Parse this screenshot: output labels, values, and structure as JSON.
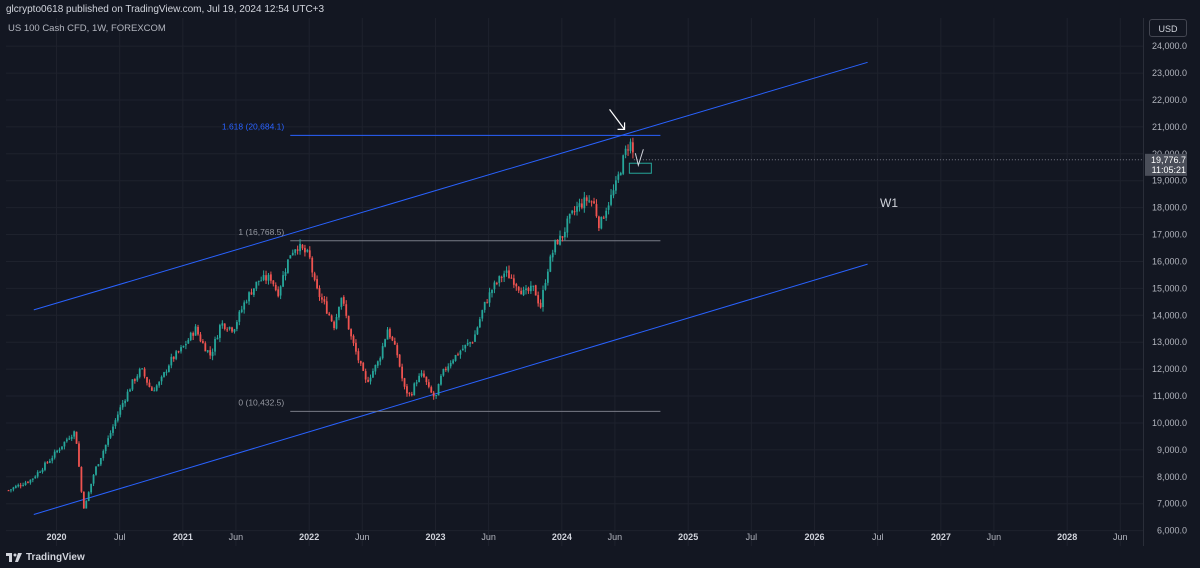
{
  "header": {
    "published": "glcrypto0618 published on TradingView.com, Jul 19, 2024 12:54 UTC+3",
    "symbol": "US 100 Cash CFD, 1W, FOREXCOM",
    "currency_button": "USD"
  },
  "footer": {
    "brand": "TradingView"
  },
  "chart_data": {
    "type": "candlestick",
    "y_ticks": [
      "6,000.0",
      "7,000.0",
      "8,000.0",
      "9,000.0",
      "10,000.0",
      "11,000.0",
      "12,000.0",
      "13,000.0",
      "14,000.0",
      "15,000.0",
      "16,000.0",
      "17,000.0",
      "18,000.0",
      "19,000.0",
      "20,000.0",
      "21,000.0",
      "22,000.0",
      "23,000.0",
      "24,000.0"
    ],
    "y_tick_values": [
      6000,
      7000,
      8000,
      9000,
      10000,
      11000,
      12000,
      13000,
      14000,
      15000,
      16000,
      17000,
      18000,
      19000,
      20000,
      21000,
      22000,
      23000,
      24000
    ],
    "ylim": [
      5800,
      24600
    ],
    "x_ticks": [
      {
        "label": "2020",
        "t": 2020.0,
        "bold": true
      },
      {
        "label": "Jul",
        "t": 2020.5
      },
      {
        "label": "2021",
        "t": 2021.0,
        "bold": true
      },
      {
        "label": "Jun",
        "t": 2021.42
      },
      {
        "label": "2022",
        "t": 2022.0,
        "bold": true
      },
      {
        "label": "Jun",
        "t": 2022.42
      },
      {
        "label": "2023",
        "t": 2023.0,
        "bold": true
      },
      {
        "label": "Jun",
        "t": 2023.42
      },
      {
        "label": "2024",
        "t": 2024.0,
        "bold": true
      },
      {
        "label": "Jun",
        "t": 2024.42
      },
      {
        "label": "2025",
        "t": 2025.0,
        "bold": true
      },
      {
        "label": "Jul",
        "t": 2025.5
      },
      {
        "label": "2026",
        "t": 2026.0,
        "bold": true
      },
      {
        "label": "Jul",
        "t": 2026.5
      },
      {
        "label": "2027",
        "t": 2027.0,
        "bold": true
      },
      {
        "label": "Jun",
        "t": 2027.42
      },
      {
        "label": "2028",
        "t": 2028.0,
        "bold": true
      },
      {
        "label": "Jun",
        "t": 2028.42
      }
    ],
    "xlim": [
      2019.6,
      2028.6
    ],
    "price_path": [
      [
        2019.62,
        7500
      ],
      [
        2019.8,
        7900
      ],
      [
        2019.95,
        8650
      ],
      [
        2020.1,
        9500
      ],
      [
        2020.15,
        9700
      ],
      [
        2020.2,
        7300
      ],
      [
        2020.22,
        6800
      ],
      [
        2020.3,
        8200
      ],
      [
        2020.4,
        9300
      ],
      [
        2020.5,
        10500
      ],
      [
        2020.6,
        11500
      ],
      [
        2020.67,
        12000
      ],
      [
        2020.75,
        11200
      ],
      [
        2020.82,
        11500
      ],
      [
        2020.9,
        12300
      ],
      [
        2021.0,
        12800
      ],
      [
        2021.1,
        13500
      ],
      [
        2021.15,
        13000
      ],
      [
        2021.22,
        12500
      ],
      [
        2021.3,
        13700
      ],
      [
        2021.4,
        13500
      ],
      [
        2021.5,
        14600
      ],
      [
        2021.6,
        15300
      ],
      [
        2021.7,
        15400
      ],
      [
        2021.75,
        14800
      ],
      [
        2021.85,
        16300
      ],
      [
        2021.9,
        16600
      ],
      [
        2022.0,
        16200
      ],
      [
        2022.05,
        15000
      ],
      [
        2022.12,
        14400
      ],
      [
        2022.2,
        13600
      ],
      [
        2022.25,
        14800
      ],
      [
        2022.33,
        13200
      ],
      [
        2022.4,
        12200
      ],
      [
        2022.45,
        11500
      ],
      [
        2022.55,
        12300
      ],
      [
        2022.62,
        13500
      ],
      [
        2022.7,
        12500
      ],
      [
        2022.75,
        11300
      ],
      [
        2022.8,
        11000
      ],
      [
        2022.85,
        11600
      ],
      [
        2022.9,
        11800
      ],
      [
        2022.95,
        11200
      ],
      [
        2023.0,
        10900
      ],
      [
        2023.05,
        11800
      ],
      [
        2023.12,
        12300
      ],
      [
        2023.2,
        12700
      ],
      [
        2023.3,
        13100
      ],
      [
        2023.38,
        14300
      ],
      [
        2023.45,
        15000
      ],
      [
        2023.55,
        15600
      ],
      [
        2023.62,
        15300
      ],
      [
        2023.7,
        14800
      ],
      [
        2023.78,
        15000
      ],
      [
        2023.83,
        14300
      ],
      [
        2023.88,
        15600
      ],
      [
        2023.95,
        16700
      ],
      [
        2024.0,
        16900
      ],
      [
        2024.05,
        17500
      ],
      [
        2024.12,
        18000
      ],
      [
        2024.2,
        18300
      ],
      [
        2024.25,
        18200
      ],
      [
        2024.3,
        17300
      ],
      [
        2024.35,
        18000
      ],
      [
        2024.42,
        18700
      ],
      [
        2024.48,
        19700
      ],
      [
        2024.52,
        20300
      ],
      [
        2024.55,
        20400
      ],
      [
        2024.57,
        19777
      ]
    ],
    "last_price_label": "19,776.7",
    "countdown_label": "11:05:21",
    "fib_levels": [
      {
        "label": "1.618 (20,684.1)",
        "value": 20684.1,
        "x_start": 2021.85,
        "x_end": 2024.78,
        "color": "#2962ff"
      },
      {
        "label": "1 (16,768.5)",
        "value": 16768.5,
        "x_start": 2021.85,
        "x_end": 2024.78,
        "color": "#787b86"
      },
      {
        "label": "0 (10,432.5)",
        "value": 10432.5,
        "x_start": 2021.85,
        "x_end": 2024.78,
        "color": "#787b86"
      }
    ],
    "channel": {
      "upper": {
        "start": [
          2019.82,
          14200
        ],
        "end": [
          2026.42,
          23400
        ]
      },
      "lower": {
        "start": [
          2019.82,
          6600
        ],
        "end": [
          2026.42,
          15900
        ]
      },
      "color": "#2962ff"
    },
    "annotation": "W1",
    "colors": {
      "up": "#26a69a",
      "down": "#ef5350",
      "background": "#131722",
      "grid": "#1e222d",
      "text": "#b2b5be"
    }
  }
}
